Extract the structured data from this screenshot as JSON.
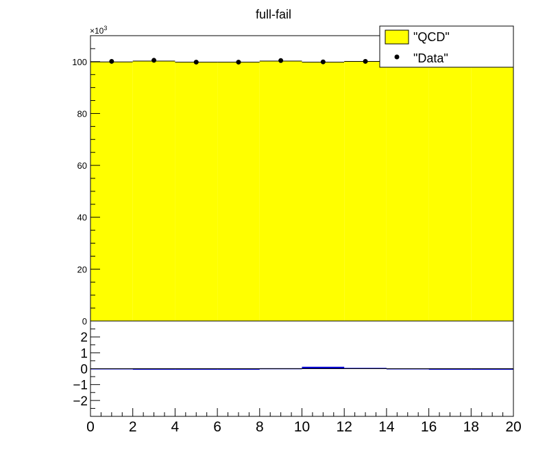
{
  "chart_data": {
    "title": "full-fail",
    "type": "bar",
    "x_range": [
      0,
      20
    ],
    "x_ticks": [
      "0",
      "2",
      "4",
      "6",
      "8",
      "10",
      "12",
      "14",
      "16",
      "18",
      "20"
    ],
    "upper_panel": {
      "y_multiplier": "×10",
      "y_multiplier_exponent": "3",
      "y_range": [
        0,
        110
      ],
      "y_ticks": [
        "0",
        "20",
        "40",
        "60",
        "80",
        "100"
      ],
      "bin_edges": [
        0,
        2,
        4,
        6,
        8,
        10,
        12,
        14,
        16,
        18,
        20
      ],
      "series": [
        {
          "name": "\"QCD\"",
          "kind": "filled-histogram",
          "color": "#ffff00",
          "values": [
            99.9,
            100.2,
            99.8,
            99.8,
            100.2,
            99.8,
            100.1,
            100.0,
            99.9,
            99.9
          ]
        },
        {
          "name": "\"Data\"",
          "kind": "points",
          "color": "#000000",
          "x": [
            1,
            3,
            5,
            7,
            9,
            11,
            13,
            15,
            17,
            19
          ],
          "values": [
            100.1,
            100.5,
            99.8,
            99.8,
            100.4,
            99.9,
            100.1,
            100.0,
            100.1,
            100.0
          ]
        }
      ]
    },
    "lower_panel": {
      "y_range": [
        -3,
        3
      ],
      "y_ticks": [
        "−2",
        "−1",
        "0",
        "1",
        "2"
      ],
      "color": "#0000cc",
      "values": [
        0.02,
        -0.02,
        -0.03,
        -0.05,
        0.03,
        0.12,
        0.05,
        0.02,
        -0.01,
        -0.04
      ]
    },
    "legend": {
      "placement": "top-right",
      "entries": [
        {
          "label": "\"QCD\"",
          "symbol": "box",
          "color": "#ffff00"
        },
        {
          "label": "\"Data\"",
          "symbol": "marker",
          "color": "#000000"
        }
      ]
    }
  }
}
